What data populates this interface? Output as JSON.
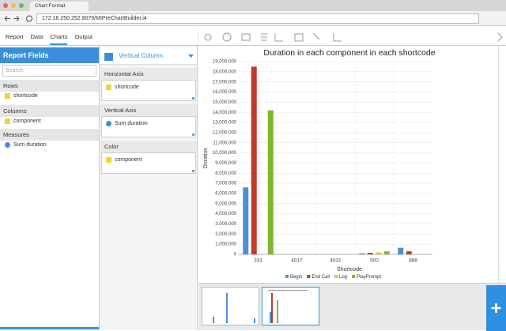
{
  "browser": {
    "tab_title": "Chart Format",
    "url": "172.16.250.252:8079/MIPreChartBuilder.i4"
  },
  "menu": [
    "Report",
    "Data",
    "Charts",
    "Output"
  ],
  "report_fields": {
    "title": "Report Fields",
    "search_placeholder": "Search",
    "sections": [
      {
        "name": "Rows",
        "items": [
          "shortcode"
        ]
      },
      {
        "name": "Columns",
        "items": [
          "component"
        ]
      },
      {
        "name": "Measures",
        "items": [
          "Sum duration"
        ]
      }
    ]
  },
  "chart_settings": {
    "chart_type": "Vertical Column",
    "slots": [
      {
        "label": "Horizontal Axis",
        "field": "shortcode"
      },
      {
        "label": "Vertical Axis",
        "field": "Sum duration"
      },
      {
        "label": "Color",
        "field": "component"
      }
    ]
  },
  "chart_data": {
    "type": "bar",
    "title": "Duration in each component in each shortcode",
    "x_label": "Shortcode",
    "y_label": "Duration",
    "categories": [
      "333",
      "4017",
      "4031",
      "500",
      "888"
    ],
    "series": [
      {
        "name": "Begin",
        "color": "#4a90d9",
        "values": [
          6600000,
          0,
          0,
          100000,
          650000
        ]
      },
      {
        "name": "End Call",
        "color": "#c0392b",
        "values": [
          18500000,
          0,
          0,
          150000,
          300000
        ]
      },
      {
        "name": "Log",
        "color": "#f0c419",
        "values": [
          0,
          0,
          0,
          200000,
          0
        ]
      },
      {
        "name": "PlayPrompt",
        "color": "#7cb82f",
        "values": [
          14200000,
          0,
          0,
          300000,
          0
        ]
      }
    ],
    "ylim": [
      0,
      19000000
    ],
    "yticks": [
      0,
      {
        "value": 1000000,
        "label": "1,000,000"
      },
      {
        "value": 2000000,
        "label": "2,000,000"
      },
      {
        "value": 3000000,
        "label": "3,000,000"
      },
      {
        "value": 4000000,
        "label": "4,000,000"
      },
      {
        "value": 5000000,
        "label": "5,000,000"
      },
      {
        "value": 6000000,
        "label": "6,000,000"
      },
      {
        "value": 7000000,
        "label": "7,000,000"
      },
      {
        "value": 8000000,
        "label": "8,000,000"
      },
      {
        "value": 9000000,
        "label": "9,000,000"
      },
      {
        "value": 10000000,
        "label": "10,000,000"
      },
      {
        "value": 11000000,
        "label": "11,000,000"
      },
      {
        "value": 12000000,
        "label": "12,000,000"
      },
      {
        "value": 13000000,
        "label": "13,000,000"
      },
      {
        "value": 14000000,
        "label": "14,000,000"
      },
      {
        "value": 15000000,
        "label": "15,000,000"
      },
      {
        "value": 16000000,
        "label": "16,000,000"
      },
      {
        "value": 17000000,
        "label": "17,000,000"
      },
      {
        "value": 18000000,
        "label": "18,000,000"
      },
      {
        "value": 19000000,
        "label": "19,000,000"
      }
    ],
    "grid": true,
    "legend": "bottom"
  }
}
